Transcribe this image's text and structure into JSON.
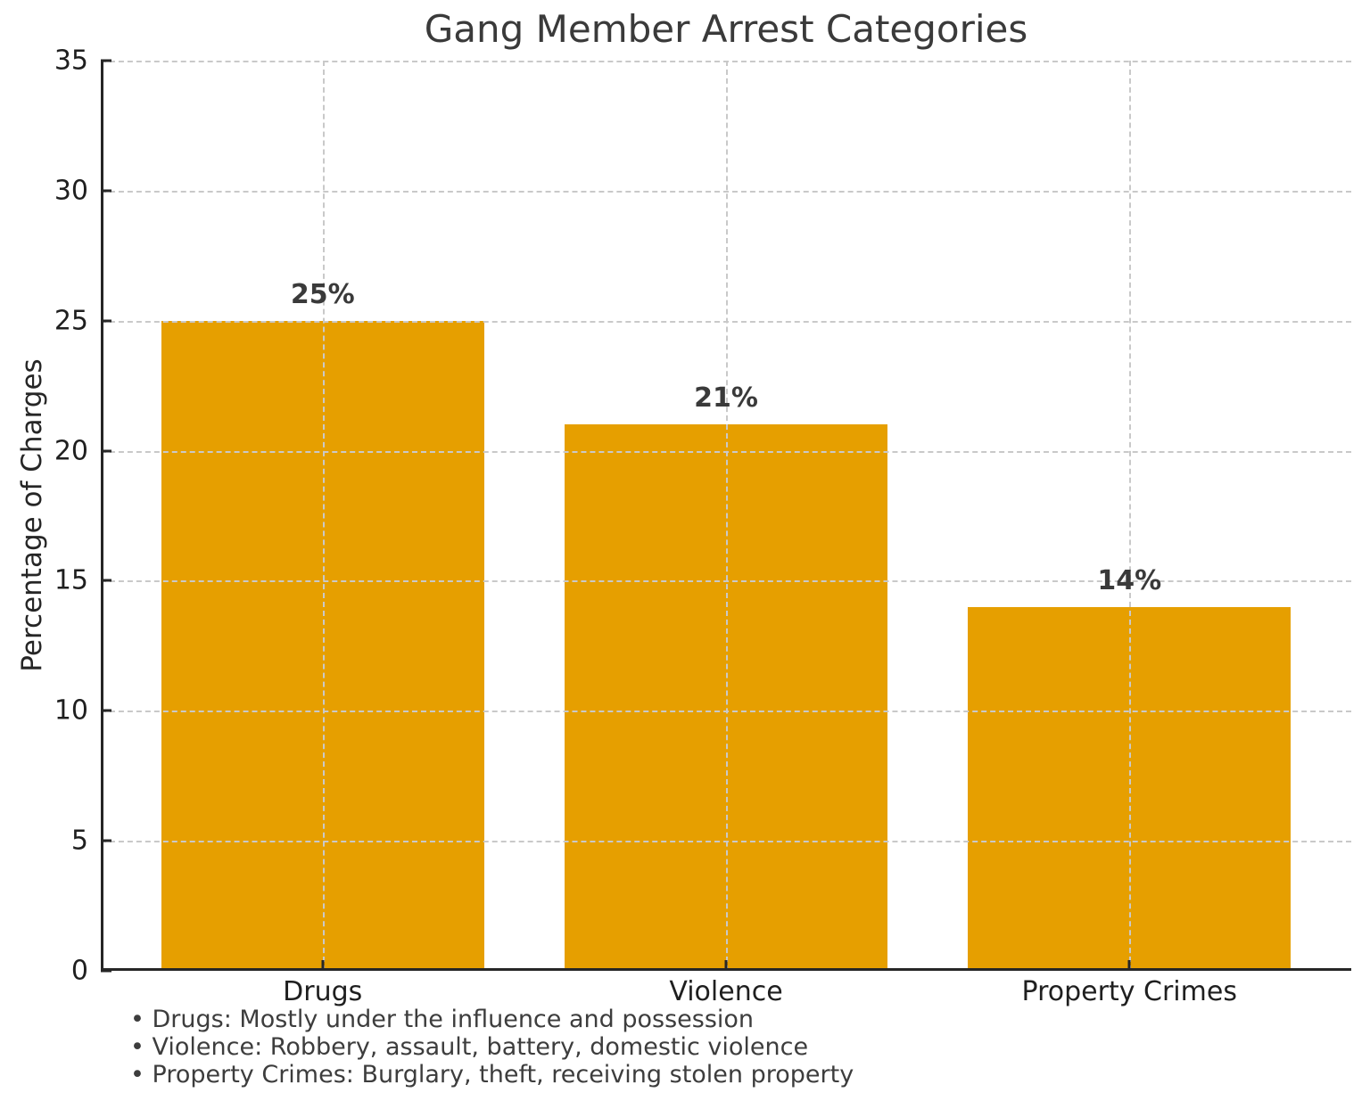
{
  "figure": {
    "background": "#ffffff"
  },
  "chart_data": {
    "type": "bar",
    "title": "Gang Member Arrest Categories",
    "ylabel": "Percentage of Charges",
    "xlabel": "",
    "categories": [
      "Drugs",
      "Violence",
      "Property Crimes"
    ],
    "values": [
      25,
      21,
      14
    ],
    "bar_labels": [
      "25%",
      "21%",
      "14%"
    ],
    "ylim": [
      0,
      35
    ],
    "yticks": [
      0,
      5,
      10,
      15,
      20,
      25,
      30,
      35
    ],
    "bar_color": "#E69F00",
    "grid": {
      "style": "dashed",
      "color": "#c9c9c9",
      "horizontal": true,
      "vertical": true,
      "above_bars": true
    },
    "legend": null
  },
  "footnotes": {
    "bullet": "•",
    "items": [
      "Drugs: Mostly under the influence and possession",
      "Violence: Robbery, assault, battery, domestic violence",
      "Property Crimes: Burglary, theft, receiving stolen property"
    ]
  }
}
